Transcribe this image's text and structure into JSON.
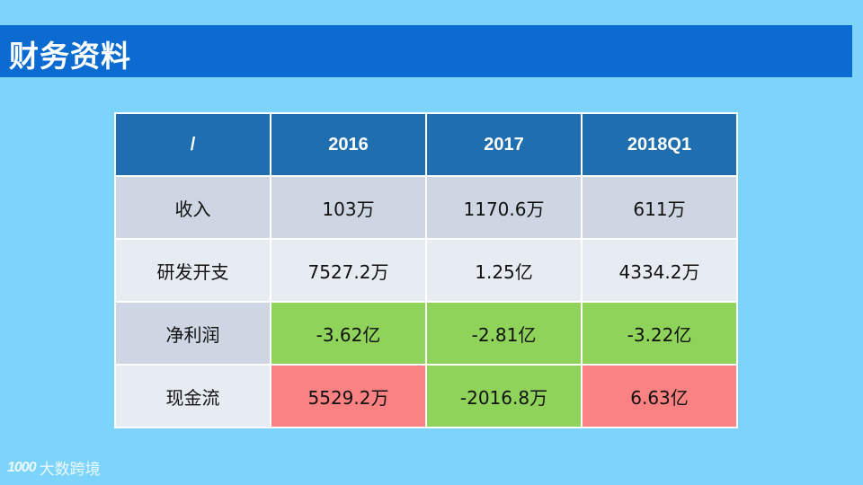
{
  "slide": {
    "title": "财务资料"
  },
  "table": {
    "header": [
      "/",
      "2016",
      "2017",
      "2018Q1"
    ],
    "rows": [
      {
        "label": "收入",
        "cells": [
          "103万",
          "1170.6万",
          "611万"
        ]
      },
      {
        "label": "研发开支",
        "cells": [
          "7527.2万",
          "1.25亿",
          "4334.2万"
        ]
      },
      {
        "label": "净利润",
        "cells": [
          "-3.62亿",
          "-2.81亿",
          "-3.22亿"
        ]
      },
      {
        "label": "现金流",
        "cells": [
          "5529.2万",
          "-2016.8万",
          "6.63亿"
        ]
      }
    ],
    "colors": {
      "header": "#1f6fb0",
      "positive_red": "#fb8282",
      "negative_green": "#8fd35a"
    }
  },
  "watermark": {
    "logo": "1000",
    "text": "大数跨境"
  }
}
